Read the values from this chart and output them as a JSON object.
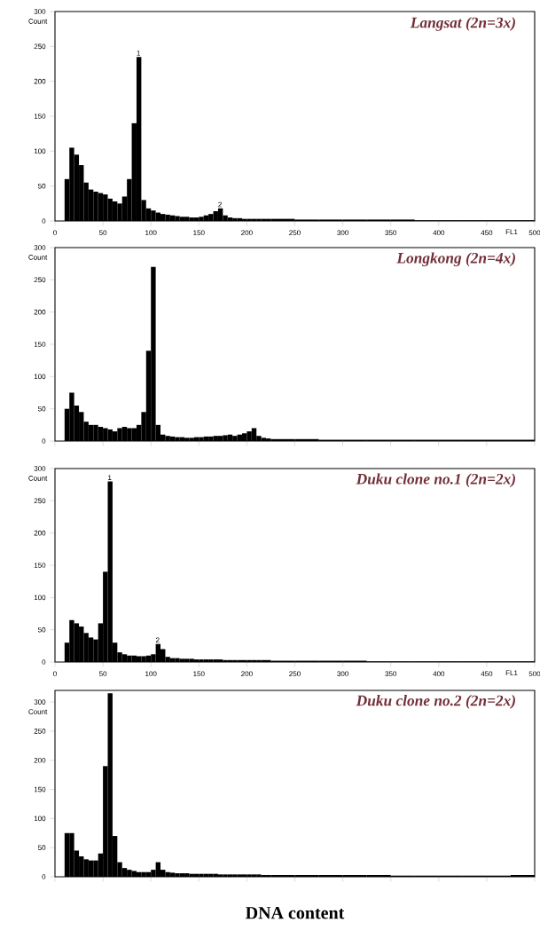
{
  "chart_data": [
    {
      "type": "histogram",
      "title": "Langsat (2n=3x)",
      "xlabel": "FL1",
      "ylabel": "Count",
      "color": "#000000",
      "bins": [
        10,
        15,
        20,
        25,
        30,
        35,
        40,
        45,
        50,
        55,
        60,
        65,
        70,
        75,
        80,
        85,
        90,
        95,
        100,
        105,
        110,
        115,
        120,
        125,
        130,
        135,
        140,
        145,
        150,
        155,
        160,
        165,
        170,
        175,
        180,
        185,
        190,
        195,
        200,
        205,
        210,
        215,
        220,
        225,
        250,
        275,
        300,
        325,
        350,
        375,
        400,
        425,
        450,
        475,
        500
      ],
      "values": [
        60,
        105,
        95,
        80,
        55,
        45,
        42,
        40,
        38,
        32,
        28,
        25,
        35,
        60,
        140,
        235,
        30,
        18,
        15,
        12,
        10,
        9,
        8,
        7,
        6,
        6,
        5,
        5,
        6,
        8,
        10,
        14,
        18,
        8,
        5,
        4,
        4,
        3,
        3,
        3,
        3,
        3,
        3,
        3,
        2,
        2,
        2,
        2,
        2,
        1,
        1,
        1,
        1,
        1
      ],
      "xlim": [
        0,
        500
      ],
      "ylim": [
        0,
        300
      ],
      "xticks": [
        0,
        50,
        100,
        150,
        200,
        250,
        300,
        350,
        400,
        450,
        500
      ],
      "yticks": [
        0,
        50,
        100,
        150,
        200,
        250,
        300
      ],
      "annotations": [
        {
          "text": "1",
          "x": 87,
          "y": 235
        },
        {
          "text": "2",
          "x": 172,
          "y": 18
        }
      ]
    },
    {
      "type": "histogram",
      "title": "Longkong (2n=4x)",
      "ylabel": "Count",
      "color": "#000000",
      "tick_labels": "y",
      "bins": [
        10,
        15,
        20,
        25,
        30,
        35,
        40,
        45,
        50,
        55,
        60,
        65,
        70,
        75,
        80,
        85,
        90,
        95,
        100,
        105,
        110,
        115,
        120,
        125,
        130,
        135,
        140,
        145,
        150,
        155,
        160,
        165,
        170,
        175,
        180,
        185,
        190,
        195,
        200,
        205,
        210,
        215,
        220,
        225,
        250,
        275,
        300,
        325,
        350,
        375,
        400,
        425,
        450,
        475,
        500
      ],
      "values": [
        50,
        75,
        55,
        45,
        30,
        25,
        25,
        22,
        20,
        18,
        15,
        20,
        22,
        20,
        20,
        25,
        45,
        140,
        270,
        25,
        10,
        8,
        7,
        6,
        6,
        5,
        5,
        6,
        6,
        7,
        7,
        8,
        8,
        9,
        10,
        8,
        10,
        12,
        15,
        20,
        8,
        5,
        4,
        3,
        3,
        2,
        2,
        2,
        2,
        2,
        2,
        2,
        2,
        2
      ],
      "xlim": [
        0,
        500
      ],
      "ylim": [
        0,
        300
      ],
      "xticks": [
        {
          "value": 0,
          "label": null
        },
        {
          "value": 50,
          "label": null
        },
        {
          "value": 100,
          "label": null
        },
        {
          "value": 150,
          "label": null
        },
        {
          "value": 200,
          "label": null
        },
        {
          "value": 250,
          "label": null
        },
        {
          "value": 300,
          "label": null
        },
        {
          "value": 350,
          "label": null
        },
        {
          "value": 400,
          "label": null
        },
        {
          "value": 450,
          "label": null
        },
        {
          "value": 500,
          "label": null
        }
      ],
      "yticks": [
        0,
        50,
        100,
        150,
        200,
        250,
        300
      ]
    },
    {
      "type": "histogram",
      "title": "Duku  clone no.1 (2n=2x)",
      "xlabel": "FL1",
      "ylabel": "Count",
      "color": "#000000",
      "bins": [
        10,
        15,
        20,
        25,
        30,
        35,
        40,
        45,
        50,
        55,
        60,
        65,
        70,
        75,
        80,
        85,
        90,
        95,
        100,
        105,
        110,
        115,
        120,
        125,
        130,
        135,
        140,
        145,
        150,
        155,
        160,
        165,
        170,
        175,
        180,
        185,
        190,
        195,
        200,
        205,
        210,
        215,
        220,
        225,
        250,
        275,
        300,
        325,
        350,
        375,
        400,
        425,
        450,
        475,
        500
      ],
      "values": [
        30,
        65,
        60,
        55,
        45,
        38,
        35,
        60,
        140,
        280,
        30,
        15,
        12,
        10,
        10,
        9,
        9,
        10,
        12,
        28,
        20,
        8,
        6,
        6,
        5,
        5,
        5,
        4,
        4,
        4,
        4,
        4,
        4,
        3,
        3,
        3,
        3,
        3,
        3,
        3,
        3,
        3,
        3,
        2,
        2,
        2,
        2,
        1,
        1,
        1,
        1,
        1,
        1,
        1
      ],
      "xlim": [
        0,
        500
      ],
      "ylim": [
        0,
        300
      ],
      "xticks": [
        0,
        50,
        100,
        150,
        200,
        250,
        300,
        350,
        400,
        450,
        500
      ],
      "yticks": [
        0,
        50,
        100,
        150,
        200,
        250,
        300
      ],
      "annotations": [
        {
          "text": "1",
          "x": 57,
          "y": 280
        },
        {
          "text": "2",
          "x": 107,
          "y": 28
        }
      ]
    },
    {
      "type": "histogram",
      "title": "Duku  clone no.2 (2n=2x)",
      "xlabel": "DNA content",
      "ylabel": "Count",
      "color": "#000000",
      "tick_labels": "y",
      "bins": [
        10,
        15,
        20,
        25,
        30,
        35,
        40,
        45,
        50,
        55,
        60,
        65,
        70,
        75,
        80,
        85,
        90,
        95,
        100,
        105,
        110,
        115,
        120,
        125,
        130,
        135,
        140,
        145,
        150,
        155,
        160,
        165,
        170,
        175,
        180,
        185,
        190,
        195,
        200,
        205,
        210,
        215,
        220,
        225,
        250,
        275,
        300,
        325,
        350,
        375,
        400,
        425,
        450,
        475,
        500
      ],
      "values": [
        75,
        75,
        45,
        35,
        30,
        28,
        28,
        40,
        190,
        315,
        70,
        25,
        15,
        12,
        10,
        8,
        8,
        8,
        12,
        25,
        12,
        8,
        7,
        6,
        6,
        6,
        5,
        5,
        5,
        5,
        5,
        5,
        4,
        4,
        4,
        4,
        4,
        4,
        4,
        4,
        4,
        3,
        3,
        3,
        3,
        3,
        3,
        3,
        2,
        2,
        2,
        2,
        2,
        3
      ],
      "xlim": [
        0,
        500
      ],
      "ylim": [
        0,
        320
      ],
      "xticks": [
        {
          "value": 0,
          "label": null
        },
        {
          "value": 50,
          "label": null
        },
        {
          "value": 100,
          "label": null
        },
        {
          "value": 150,
          "label": null
        },
        {
          "value": 200,
          "label": null
        },
        {
          "value": 250,
          "label": null
        },
        {
          "value": 300,
          "label": null
        },
        {
          "value": 350,
          "label": null
        },
        {
          "value": 400,
          "label": null
        },
        {
          "value": 450,
          "label": null
        },
        {
          "value": 500,
          "label": null
        }
      ],
      "yticks": [
        0,
        50,
        100,
        150,
        200,
        250,
        300
      ]
    }
  ]
}
